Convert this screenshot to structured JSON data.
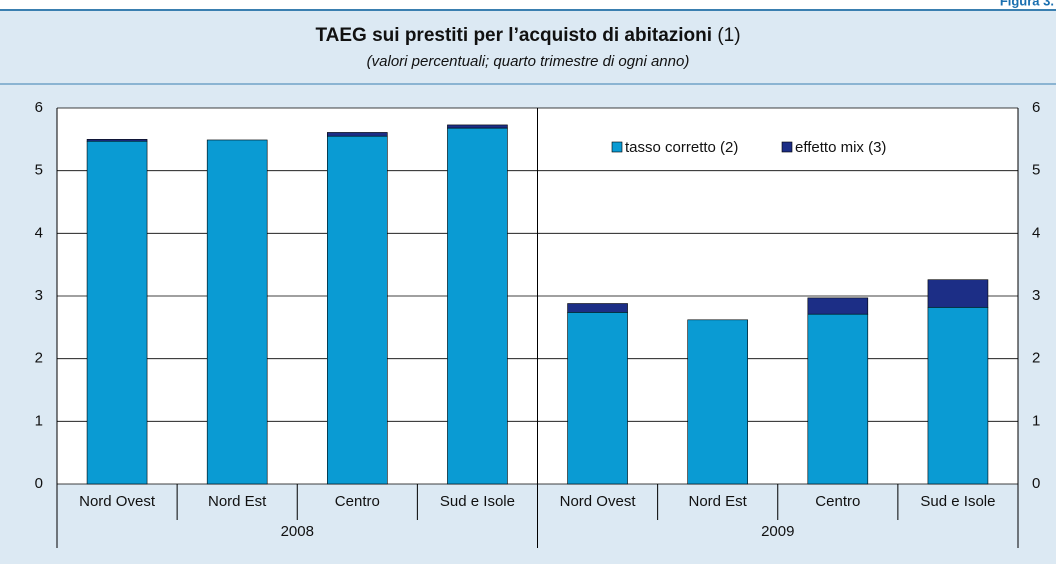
{
  "figure_label": "Figura 3.",
  "chart_data": {
    "type": "stacked_bar",
    "title": "TAEG sui prestiti per l’acquisto di abitazioni",
    "title_note": "(1)",
    "subtitle": "(valori percentuali; quarto trimestre di ogni anno)",
    "categories": [
      "Nord Ovest",
      "Nord Est",
      "Centro",
      "Sud e Isole",
      "Nord Ovest",
      "Nord Est",
      "Centro",
      "Sud e Isole"
    ],
    "groups": [
      "2008",
      "2009"
    ],
    "series": [
      {
        "name": "tasso corretto (2)",
        "color": "#0a9bd3",
        "values": [
          5.47,
          5.49,
          5.55,
          5.68,
          2.74,
          2.62,
          2.71,
          2.82
        ]
      },
      {
        "name": "effetto mix (3)",
        "color": "#1c2e86",
        "values": [
          0.03,
          0,
          0.06,
          0.05,
          0.14,
          0,
          0.26,
          0.44
        ]
      }
    ],
    "ylim": [
      0,
      6
    ],
    "yticks": [
      0,
      1,
      2,
      3,
      4,
      5,
      6
    ],
    "grid": true,
    "legend": "top-right"
  }
}
